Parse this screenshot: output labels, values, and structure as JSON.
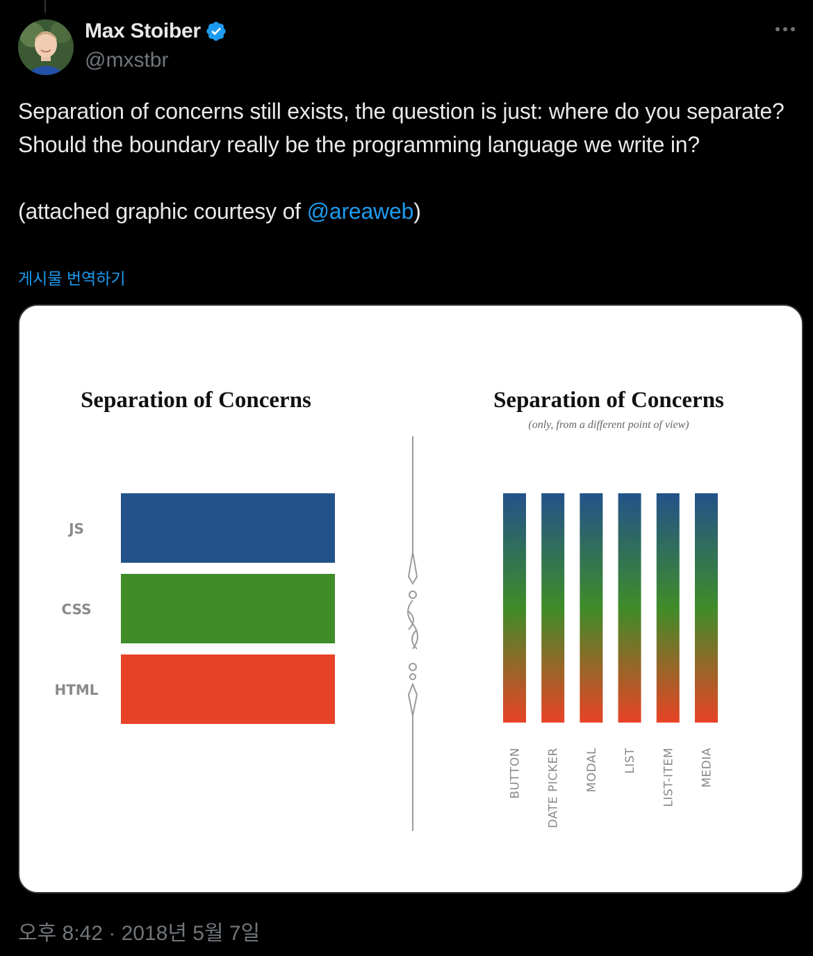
{
  "author": {
    "name": "Max Stoiber",
    "handle": "@mxstbr",
    "verified": true
  },
  "icons": {
    "avatar": "avatar-photo",
    "verified": "verified-badge-icon",
    "more": "more-dots-icon"
  },
  "tweet": {
    "line1": "Separation of concerns still exists, the question is just: where do you separate? Should the boundary really be the programming language we write in?",
    "line2_prefix": "(attached graphic courtesy of ",
    "line2_mention": "@areaweb",
    "line2_suffix": ")",
    "translate_label": "게시물 번역하기",
    "timestamp": "오후 8:42 · 2018년 5월 7일"
  },
  "graphic": {
    "left": {
      "title": "Separation of Concerns",
      "layers": [
        {
          "label": "JS",
          "color": "#23528a"
        },
        {
          "label": "CSS",
          "color": "#3f8c29"
        },
        {
          "label": "HTML",
          "color": "#e84326"
        }
      ]
    },
    "right": {
      "title": "Separation of Concerns",
      "subtitle": "(only, from a different point of view)",
      "columns": [
        "BUTTON",
        "DATE PICKER",
        "MODAL",
        "LIST",
        "LIST-ITEM",
        "MEDIA"
      ],
      "gradient": [
        "#23528a",
        "#3f8c29",
        "#e84326"
      ]
    }
  },
  "colors": {
    "background": "#000000",
    "text": "#e7e9ea",
    "secondary": "#71767b",
    "link": "#1d9bf0",
    "verified": "#1d9bf0"
  }
}
